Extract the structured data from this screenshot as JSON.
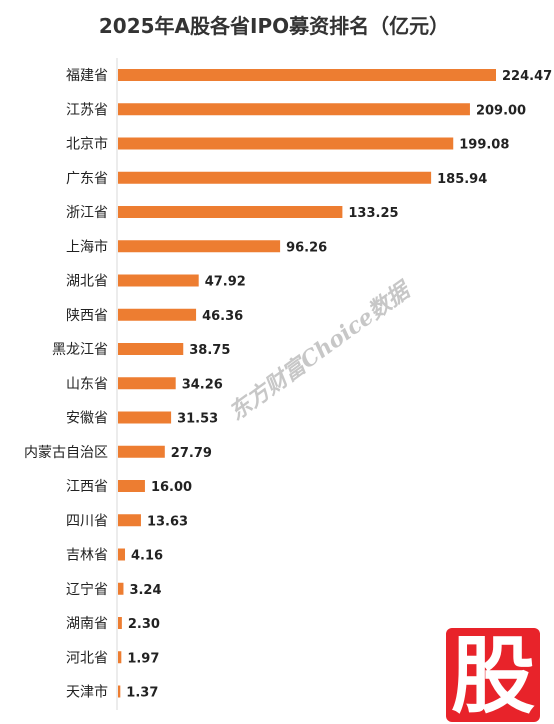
{
  "chart_data": {
    "type": "bar",
    "orientation": "horizontal",
    "title": "2025年A股各省IPO募资排名（亿元）",
    "categories": [
      "福建省",
      "江苏省",
      "北京市",
      "广东省",
      "浙江省",
      "上海市",
      "湖北省",
      "陕西省",
      "黑龙江省",
      "山东省",
      "安徽省",
      "内蒙古自治区",
      "江西省",
      "四川省",
      "吉林省",
      "辽宁省",
      "湖南省",
      "河北省",
      "天津市"
    ],
    "values": [
      224.47,
      209.0,
      199.08,
      185.94,
      133.25,
      96.26,
      47.92,
      46.36,
      38.75,
      34.26,
      31.53,
      27.79,
      16.0,
      13.63,
      4.16,
      3.24,
      2.3,
      1.97,
      1.37
    ],
    "value_labels": [
      "224.47",
      "209.00",
      "199.08",
      "185.94",
      "133.25",
      "96.26",
      "47.92",
      "46.36",
      "38.75",
      "34.26",
      "31.53",
      "27.79",
      "16.00",
      "13.63",
      "4.16",
      "3.24",
      "2.30",
      "1.97",
      "1.37"
    ],
    "xlim": [
      0,
      224.47
    ],
    "grid": false,
    "legend": "none",
    "bar_color": "#ED7D31"
  },
  "watermark": {
    "text": "东方财富Choice数据"
  },
  "brand": {
    "glyph": "股",
    "color": "#E8232A"
  }
}
